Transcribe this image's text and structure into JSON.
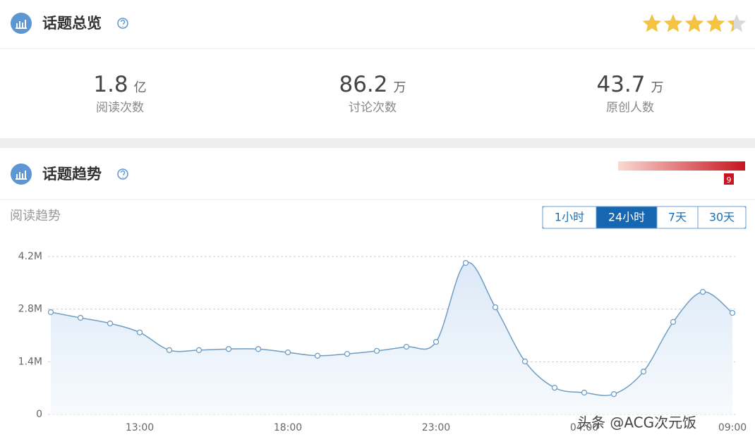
{
  "overview": {
    "title": "话题总览",
    "rating": 4.5,
    "stats": [
      {
        "value": "1.8",
        "unit": "亿",
        "label": "阅读次数"
      },
      {
        "value": "86.2",
        "unit": "万",
        "label": "讨论次数"
      },
      {
        "value": "43.7",
        "unit": "万",
        "label": "原创人数"
      }
    ]
  },
  "trend": {
    "title": "话题趋势",
    "heat": "9",
    "subtitle": "阅读趋势",
    "ranges": [
      "1小时",
      "24小时",
      "7天",
      "30天"
    ],
    "active_range": 1
  },
  "chart_data": {
    "type": "line",
    "color": "#6f9dc4",
    "categories": [
      null,
      null,
      null,
      "13:00",
      null,
      null,
      null,
      null,
      "18:00",
      null,
      null,
      null,
      null,
      "23:00",
      null,
      null,
      null,
      null,
      "04:00",
      null,
      null,
      null,
      null,
      "09:00"
    ],
    "values": [
      2720000,
      2570000,
      2420000,
      2180000,
      1710000,
      1710000,
      1740000,
      1740000,
      1650000,
      1560000,
      1610000,
      1690000,
      1800000,
      1930000,
      4030000,
      2850000,
      1410000,
      710000,
      580000,
      540000,
      1140000,
      2460000,
      3260000,
      2700000
    ],
    "ylim": [
      0,
      4200000
    ],
    "yticks": [
      0,
      {
        "value": 1400000,
        "label": "1.4M"
      },
      {
        "value": 2800000,
        "label": "2.8M"
      },
      {
        "value": 4200000,
        "label": "4.2M"
      }
    ],
    "grid": true
  },
  "watermark": "头条 @ACG次元饭"
}
